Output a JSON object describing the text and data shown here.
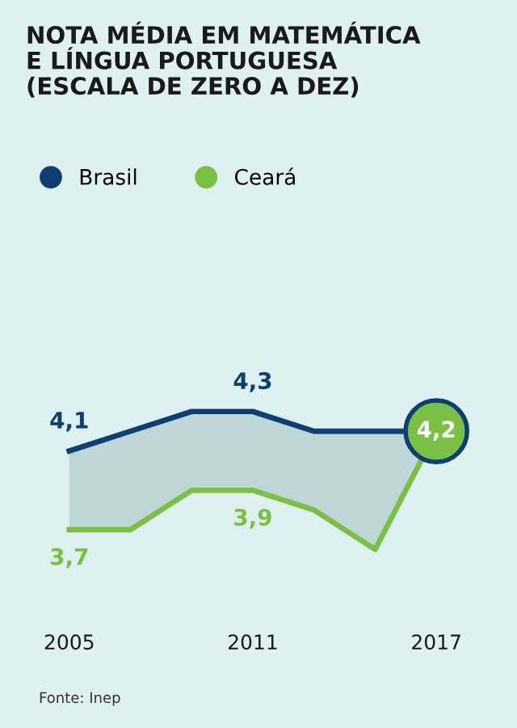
{
  "chart_data": {
    "type": "line",
    "title": "NOTA MÉDIA EM MATEMÁTICA\nE LÍNGUA PORTUGUESA\n(ESCALA DE ZERO A DEZ)",
    "x": [
      2005,
      2007,
      2009,
      2011,
      2013,
      2015,
      2017
    ],
    "series": [
      {
        "name": "Brasil",
        "color": "#0d3f73",
        "values": [
          4.1,
          4.2,
          4.3,
          4.3,
          4.2,
          4.2,
          4.2
        ],
        "lower": [
          3.7,
          3.7,
          3.9,
          3.9,
          3.8,
          3.6,
          4.2
        ],
        "upper": [
          4.1,
          4.2,
          4.3,
          4.3,
          4.2,
          4.2,
          4.2
        ],
        "value_labels": [
          "4,1",
          null,
          null,
          "4,3",
          null,
          null,
          "4,2"
        ]
      },
      {
        "name": "Ceará",
        "color": "#7ac143",
        "values": [
          3.7,
          3.7,
          3.9,
          3.9,
          3.8,
          3.6,
          4.2
        ],
        "value_labels": [
          "3,7",
          null,
          null,
          "3,9",
          null,
          null,
          null
        ]
      }
    ],
    "xlim": [
      2005,
      2017
    ],
    "xticks": [
      2005,
      2011,
      2017
    ],
    "tick_labels": "x",
    "grid": false,
    "legend": "top left",
    "marker": "none",
    "line_style": "solid",
    "annotations": [
      "Fonte: Inep"
    ]
  }
}
